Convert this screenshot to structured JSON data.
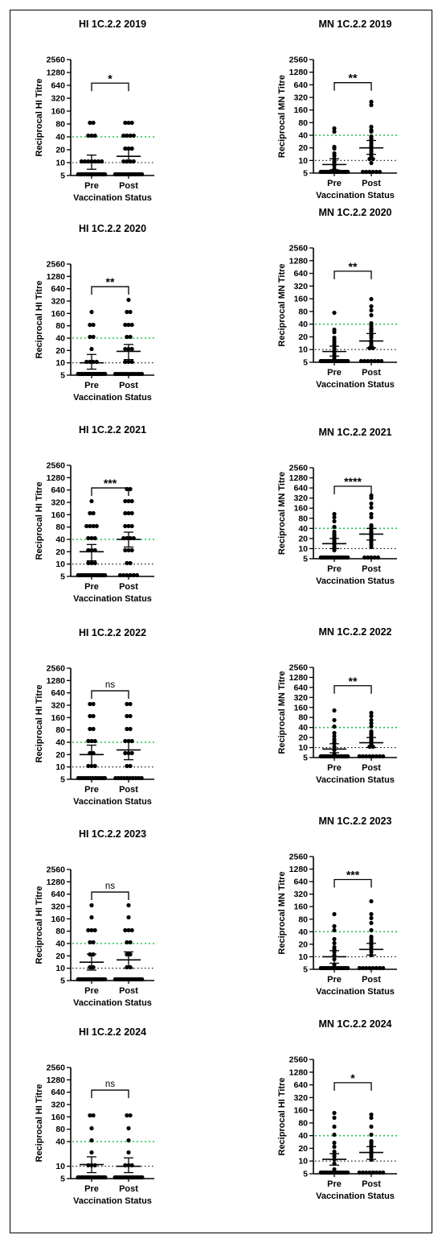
{
  "chart_data": [
    {
      "type": "scatter",
      "title": "HI 1C.2.2 2019",
      "ylabel": "Reciprocal HI Titre",
      "xlabel": "Vaccination Status",
      "categories": [
        "Pre",
        "Post"
      ],
      "yscale": "log2",
      "yticks": [
        5,
        10,
        20,
        40,
        80,
        160,
        320,
        640,
        1280,
        2560
      ],
      "ylim": [
        5,
        2560
      ],
      "threshold_green": 40,
      "threshold_black": 10,
      "significance": "*",
      "series": [
        {
          "name": "Pre",
          "values": [
            5,
            5,
            5,
            5,
            5,
            5,
            5,
            5,
            5,
            5,
            5,
            5,
            5,
            5,
            10,
            10,
            10,
            10,
            10,
            10,
            10,
            40,
            40,
            40,
            80,
            80
          ],
          "gmt": 10,
          "ci": [
            7,
            15
          ]
        },
        {
          "name": "Post",
          "values": [
            5,
            5,
            5,
            5,
            5,
            5,
            5,
            5,
            5,
            5,
            5,
            5,
            5,
            10,
            10,
            10,
            10,
            20,
            20,
            20,
            40,
            40,
            40,
            40,
            80,
            80,
            80
          ],
          "gmt": 14,
          "ci": [
            10,
            20
          ]
        }
      ]
    },
    {
      "type": "scatter",
      "title": "MN 1C.2.2 2019",
      "ylabel": "Reciprocal MN Titre",
      "xlabel": "Vaccination Status",
      "categories": [
        "Pre",
        "Post"
      ],
      "yscale": "log2",
      "yticks": [
        5,
        10,
        20,
        40,
        80,
        160,
        320,
        640,
        1280,
        2560
      ],
      "ylim": [
        5,
        2560
      ],
      "threshold_green": 40,
      "threshold_black": 10,
      "significance": "**",
      "series": [
        {
          "name": "Pre",
          "values": [
            5,
            5,
            5,
            5,
            5,
            5,
            5,
            5,
            5,
            5,
            5,
            5,
            5,
            5,
            5,
            6,
            7,
            8,
            9,
            10,
            12,
            14,
            18,
            20,
            45,
            55
          ],
          "gmt": 8,
          "ci": [
            6,
            11
          ]
        },
        {
          "name": "Post",
          "values": [
            5,
            5,
            5,
            5,
            5,
            5,
            8,
            10,
            10,
            12,
            14,
            16,
            18,
            20,
            22,
            25,
            28,
            30,
            32,
            35,
            45,
            50,
            60,
            200,
            240
          ],
          "gmt": 20,
          "ci": [
            14,
            30
          ]
        }
      ]
    },
    {
      "type": "scatter",
      "title": "HI 1C.2.2 2020",
      "ylabel": "Reciprocal HI Titre",
      "xlabel": "Vaccination Status",
      "categories": [
        "Pre",
        "Post"
      ],
      "yscale": "log2",
      "yticks": [
        5,
        10,
        20,
        40,
        80,
        160,
        320,
        640,
        1280,
        2560
      ],
      "ylim": [
        5,
        2560
      ],
      "threshold_green": 40,
      "threshold_black": 10,
      "significance": "**",
      "series": [
        {
          "name": "Pre",
          "values": [
            5,
            5,
            5,
            5,
            5,
            5,
            5,
            5,
            5,
            5,
            5,
            5,
            5,
            5,
            5,
            5,
            10,
            10,
            10,
            10,
            20,
            40,
            40,
            80,
            80,
            160
          ],
          "gmt": 10,
          "ci": [
            7,
            16
          ]
        },
        {
          "name": "Post",
          "values": [
            5,
            5,
            5,
            5,
            5,
            5,
            5,
            5,
            5,
            5,
            5,
            5,
            10,
            10,
            10,
            20,
            20,
            20,
            40,
            40,
            80,
            80,
            80,
            160,
            160,
            320
          ],
          "gmt": 19,
          "ci": [
            12,
            28
          ]
        }
      ]
    },
    {
      "type": "scatter",
      "title": "MN 1C.2.2 2020",
      "ylabel": "Reciprocal MN Titre",
      "xlabel": "Vaccination Status",
      "categories": [
        "Pre",
        "Post"
      ],
      "yscale": "log2",
      "yticks": [
        5,
        10,
        20,
        40,
        80,
        160,
        320,
        640,
        1280,
        2560
      ],
      "ylim": [
        5,
        2560
      ],
      "threshold_green": 40,
      "threshold_black": 10,
      "significance": "**",
      "series": [
        {
          "name": "Pre",
          "values": [
            5,
            5,
            5,
            5,
            5,
            5,
            5,
            5,
            5,
            5,
            5,
            5,
            5,
            5,
            5,
            6,
            7,
            8,
            9,
            10,
            12,
            14,
            16,
            18,
            24,
            28,
            70
          ],
          "gmt": 9,
          "ci": [
            7,
            12
          ]
        },
        {
          "name": "Post",
          "values": [
            5,
            5,
            5,
            5,
            5,
            5,
            5,
            10,
            10,
            12,
            14,
            15,
            18,
            20,
            22,
            25,
            28,
            30,
            35,
            40,
            60,
            80,
            100,
            150
          ],
          "gmt": 16,
          "ci": [
            11,
            24
          ]
        }
      ]
    },
    {
      "type": "scatter",
      "title": "HI 1C.2.2 2021",
      "ylabel": "Reciprocal HI Titre",
      "xlabel": "Vaccination Status",
      "categories": [
        "Pre",
        "Post"
      ],
      "yscale": "log2",
      "yticks": [
        5,
        10,
        20,
        40,
        80,
        160,
        320,
        640,
        1280,
        2560
      ],
      "ylim": [
        5,
        2560
      ],
      "threshold_green": 40,
      "threshold_black": 10,
      "significance": "***",
      "series": [
        {
          "name": "Pre",
          "values": [
            5,
            5,
            5,
            5,
            5,
            5,
            5,
            5,
            5,
            5,
            5,
            5,
            5,
            5,
            10,
            10,
            10,
            20,
            20,
            20,
            40,
            40,
            40,
            80,
            80,
            80,
            80,
            160,
            160,
            320
          ],
          "gmt": 20,
          "ci": [
            12,
            30
          ]
        },
        {
          "name": "Post",
          "values": [
            5,
            5,
            5,
            5,
            5,
            5,
            10,
            10,
            20,
            20,
            20,
            40,
            40,
            40,
            40,
            80,
            80,
            80,
            160,
            160,
            160,
            320,
            320,
            320,
            640,
            640
          ],
          "gmt": 40,
          "ci": [
            26,
            60
          ]
        }
      ]
    },
    {
      "type": "scatter",
      "title": "MN 1C.2.2 2021",
      "ylabel": "Reciprocal MN Titre",
      "xlabel": "Vaccination Status",
      "categories": [
        "Pre",
        "Post"
      ],
      "yscale": "log2",
      "yticks": [
        5,
        10,
        20,
        40,
        80,
        160,
        320,
        640,
        1280,
        2560
      ],
      "ylim": [
        5,
        2560
      ],
      "threshold_green": 40,
      "threshold_black": 10,
      "significance": "****",
      "series": [
        {
          "name": "Pre",
          "values": [
            5,
            5,
            5,
            5,
            5,
            5,
            5,
            5,
            5,
            5,
            5,
            5,
            5,
            5,
            8,
            10,
            12,
            14,
            16,
            18,
            20,
            22,
            25,
            30,
            40,
            60,
            80,
            100
          ],
          "gmt": 14,
          "ci": [
            10,
            20
          ]
        },
        {
          "name": "Post",
          "values": [
            5,
            5,
            5,
            5,
            5,
            10,
            12,
            14,
            16,
            18,
            20,
            22,
            25,
            28,
            30,
            35,
            40,
            45,
            80,
            100,
            150,
            200,
            300,
            350
          ],
          "gmt": 27,
          "ci": [
            18,
            40
          ]
        }
      ]
    },
    {
      "type": "scatter",
      "title": "HI 1C.2.2 2022",
      "ylabel": "Reciprocal HI Titre",
      "xlabel": "Vaccination Status",
      "categories": [
        "Pre",
        "Post"
      ],
      "yscale": "log2",
      "yticks": [
        5,
        10,
        20,
        40,
        80,
        160,
        320,
        640,
        1280,
        2560
      ],
      "ylim": [
        5,
        2560
      ],
      "threshold_green": 40,
      "threshold_black": 10,
      "significance": "ns",
      "series": [
        {
          "name": "Pre",
          "values": [
            5,
            5,
            5,
            5,
            5,
            5,
            5,
            5,
            5,
            5,
            5,
            5,
            10,
            10,
            10,
            20,
            20,
            40,
            40,
            40,
            80,
            80,
            160,
            160,
            320,
            320
          ],
          "gmt": 20,
          "ci": [
            11,
            34
          ]
        },
        {
          "name": "Post",
          "values": [
            5,
            5,
            5,
            5,
            5,
            5,
            5,
            5,
            5,
            5,
            10,
            10,
            20,
            20,
            20,
            40,
            40,
            40,
            80,
            80,
            160,
            160,
            320,
            320
          ],
          "gmt": 26,
          "ci": [
            15,
            42
          ]
        }
      ]
    },
    {
      "type": "scatter",
      "title": "MN 1C.2.2 2022",
      "ylabel": "Reciprocal MN Titre",
      "xlabel": "Vaccination Status",
      "categories": [
        "Pre",
        "Post"
      ],
      "yscale": "log2",
      "yticks": [
        5,
        10,
        20,
        40,
        80,
        160,
        320,
        640,
        1280,
        2560
      ],
      "ylim": [
        5,
        2560
      ],
      "threshold_green": 40,
      "threshold_black": 10,
      "significance": "**",
      "series": [
        {
          "name": "Pre",
          "values": [
            5,
            5,
            5,
            5,
            5,
            5,
            5,
            5,
            5,
            5,
            5,
            5,
            5,
            5,
            5,
            6,
            8,
            10,
            12,
            14,
            16,
            20,
            25,
            40,
            60,
            120
          ],
          "gmt": 9,
          "ci": [
            7,
            13
          ]
        },
        {
          "name": "Post",
          "values": [
            5,
            5,
            5,
            5,
            5,
            5,
            5,
            5,
            10,
            10,
            12,
            14,
            15,
            16,
            18,
            20,
            22,
            25,
            28,
            40,
            50,
            60,
            80,
            100
          ],
          "gmt": 14,
          "ci": [
            10,
            20
          ]
        }
      ]
    },
    {
      "type": "scatter",
      "title": "HI 1C.2.2 2023",
      "ylabel": "Reciprocal HI Titre",
      "xlabel": "Vaccination Status",
      "categories": [
        "Pre",
        "Post"
      ],
      "yscale": "log2",
      "yticks": [
        5,
        10,
        20,
        40,
        80,
        160,
        320,
        640,
        1280,
        2560
      ],
      "ylim": [
        5,
        2560
      ],
      "threshold_green": 40,
      "threshold_black": 10,
      "significance": "ns",
      "series": [
        {
          "name": "Pre",
          "values": [
            5,
            5,
            5,
            5,
            5,
            5,
            5,
            5,
            5,
            5,
            5,
            5,
            5,
            5,
            5,
            10,
            10,
            20,
            20,
            40,
            40,
            80,
            80,
            80,
            160,
            320
          ],
          "gmt": 14,
          "ci": [
            9,
            22
          ]
        },
        {
          "name": "Post",
          "values": [
            5,
            5,
            5,
            5,
            5,
            5,
            5,
            5,
            5,
            5,
            5,
            5,
            5,
            5,
            10,
            10,
            20,
            20,
            40,
            40,
            80,
            80,
            80,
            160,
            320
          ],
          "gmt": 16,
          "ci": [
            10,
            25
          ]
        }
      ]
    },
    {
      "type": "scatter",
      "title": "MN 1C.2.2 2023",
      "ylabel": "Reciprocal MN Titre",
      "xlabel": "Vaccination Status",
      "categories": [
        "Pre",
        "Post"
      ],
      "yscale": "log2",
      "yticks": [
        5,
        10,
        20,
        40,
        80,
        160,
        320,
        640,
        1280,
        2560
      ],
      "ylim": [
        5,
        2560
      ],
      "threshold_green": 40,
      "threshold_black": 10,
      "significance": "***",
      "series": [
        {
          "name": "Pre",
          "values": [
            5,
            5,
            5,
            5,
            5,
            5,
            5,
            5,
            5,
            5,
            5,
            5,
            5,
            5,
            6,
            8,
            10,
            12,
            14,
            16,
            20,
            25,
            40,
            50,
            100
          ],
          "gmt": 10,
          "ci": [
            7,
            14
          ]
        },
        {
          "name": "Post",
          "values": [
            5,
            5,
            5,
            5,
            5,
            5,
            5,
            5,
            10,
            12,
            14,
            16,
            18,
            20,
            22,
            25,
            28,
            40,
            60,
            80,
            100,
            200
          ],
          "gmt": 15,
          "ci": [
            11,
            21
          ]
        }
      ]
    },
    {
      "type": "scatter",
      "title": "HI 1C.2.2 2024",
      "ylabel": "Reciprocal HI Titre",
      "xlabel": "Vaccination Status",
      "categories": [
        "Pre",
        "Post"
      ],
      "yscale": "log2",
      "yticks": [
        5,
        10,
        40,
        80,
        160,
        320,
        640,
        1280,
        2560
      ],
      "ylim": [
        5,
        2560
      ],
      "threshold_green": 40,
      "threshold_black": 10,
      "significance": "ns",
      "series": [
        {
          "name": "Pre",
          "values": [
            5,
            5,
            5,
            5,
            5,
            5,
            5,
            5,
            5,
            5,
            5,
            5,
            5,
            5,
            5,
            5,
            5,
            10,
            10,
            10,
            20,
            40,
            80,
            160,
            160
          ],
          "gmt": 11,
          "ci": [
            7,
            17
          ]
        },
        {
          "name": "Post",
          "values": [
            5,
            5,
            5,
            5,
            5,
            5,
            5,
            5,
            5,
            5,
            5,
            5,
            5,
            5,
            5,
            5,
            10,
            10,
            10,
            20,
            40,
            80,
            160,
            160
          ],
          "gmt": 10,
          "ci": [
            7,
            16
          ]
        }
      ]
    },
    {
      "type": "scatter",
      "title": "MN 1C.2.2 2024",
      "ylabel": "Reciprocal HI Titre",
      "xlabel": "Vaccination Status",
      "categories": [
        "Pre",
        "Post"
      ],
      "yscale": "log2",
      "yticks": [
        5,
        10,
        20,
        40,
        80,
        160,
        320,
        640,
        1280,
        2560
      ],
      "ylim": [
        5,
        2560
      ],
      "threshold_green": 40,
      "threshold_black": 10,
      "significance": "*",
      "series": [
        {
          "name": "Pre",
          "values": [
            5,
            5,
            5,
            5,
            5,
            5,
            5,
            5,
            5,
            5,
            5,
            5,
            5,
            5,
            6,
            8,
            10,
            12,
            14,
            16,
            20,
            25,
            40,
            60,
            100,
            130
          ],
          "gmt": 11,
          "ci": [
            8,
            15
          ]
        },
        {
          "name": "Post",
          "values": [
            5,
            5,
            5,
            5,
            5,
            5,
            5,
            5,
            10,
            12,
            14,
            16,
            18,
            20,
            22,
            25,
            28,
            40,
            60,
            100,
            120
          ],
          "gmt": 16,
          "ci": [
            11,
            22
          ]
        }
      ]
    }
  ]
}
